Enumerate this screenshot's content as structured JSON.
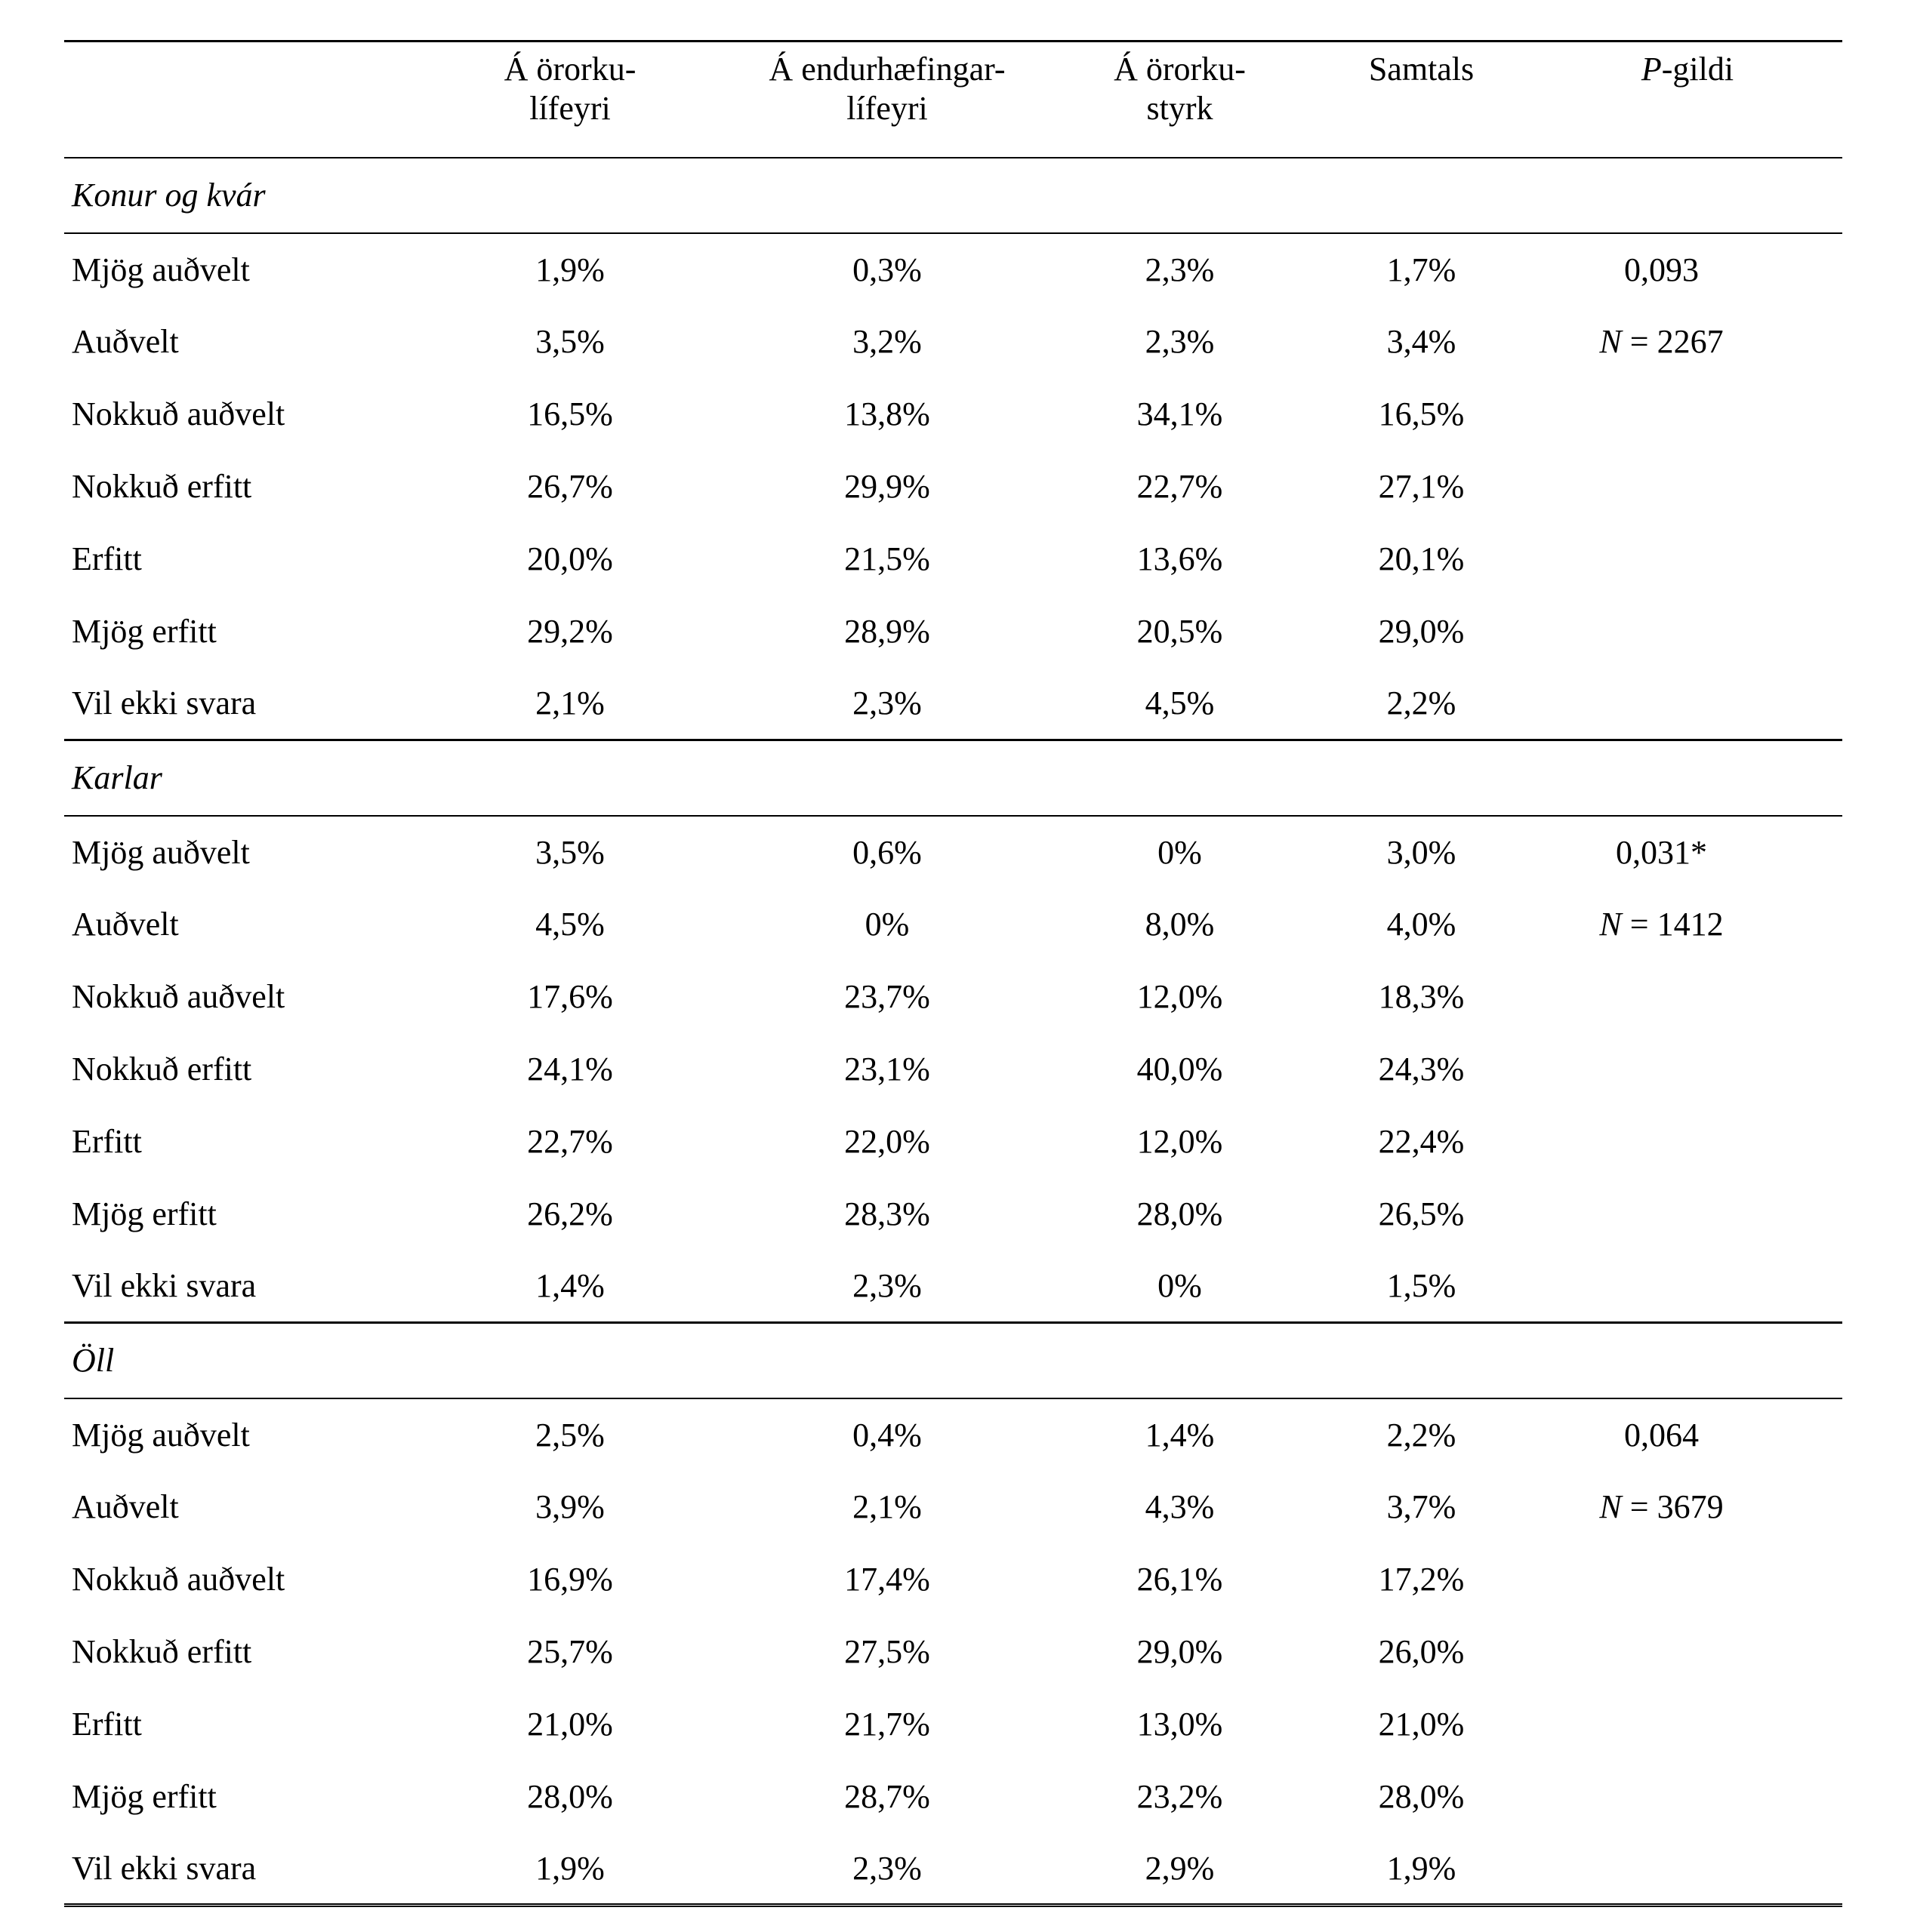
{
  "table": {
    "headers": {
      "label": "",
      "col1_line1": "Á örorku-",
      "col1_line2": "lífeyri",
      "col2_line1": "Á endurhæfingar-",
      "col2_line2": "lífeyri",
      "col3_line1": "Á örorku-",
      "col3_line2": "styrk",
      "col4": "Samtals",
      "col5_italic": "P",
      "col5_rest": "-gildi"
    },
    "sections": [
      {
        "title": "Konur og kvár",
        "p_value": "0,093",
        "n_italic": "N",
        "n_rest": " = 2267",
        "rows": [
          {
            "label": "Mjög auðvelt",
            "values": [
              "1,9%",
              "0,3%",
              "2,3%",
              "1,7%"
            ]
          },
          {
            "label": "Auðvelt",
            "values": [
              "3,5%",
              "3,2%",
              "2,3%",
              "3,4%"
            ]
          },
          {
            "label": "Nokkuð auðvelt",
            "values": [
              "16,5%",
              "13,8%",
              "34,1%",
              "16,5%"
            ]
          },
          {
            "label": "Nokkuð erfitt",
            "values": [
              "26,7%",
              "29,9%",
              "22,7%",
              "27,1%"
            ]
          },
          {
            "label": "Erfitt",
            "values": [
              "20,0%",
              "21,5%",
              "13,6%",
              "20,1%"
            ]
          },
          {
            "label": "Mjög erfitt",
            "values": [
              "29,2%",
              "28,9%",
              "20,5%",
              "29,0%"
            ]
          },
          {
            "label": "Vil ekki svara",
            "values": [
              "2,1%",
              "2,3%",
              "4,5%",
              "2,2%"
            ]
          }
        ]
      },
      {
        "title": "Karlar",
        "p_value": "0,031*",
        "n_italic": "N",
        "n_rest": " = 1412",
        "rows": [
          {
            "label": "Mjög auðvelt",
            "values": [
              "3,5%",
              "0,6%",
              "0%",
              "3,0%"
            ]
          },
          {
            "label": "Auðvelt",
            "values": [
              "4,5%",
              "0%",
              "8,0%",
              "4,0%"
            ]
          },
          {
            "label": "Nokkuð auðvelt",
            "values": [
              "17,6%",
              "23,7%",
              "12,0%",
              "18,3%"
            ]
          },
          {
            "label": "Nokkuð erfitt",
            "values": [
              "24,1%",
              "23,1%",
              "40,0%",
              "24,3%"
            ]
          },
          {
            "label": "Erfitt",
            "values": [
              "22,7%",
              "22,0%",
              "12,0%",
              "22,4%"
            ]
          },
          {
            "label": "Mjög erfitt",
            "values": [
              "26,2%",
              "28,3%",
              "28,0%",
              "26,5%"
            ]
          },
          {
            "label": "Vil ekki svara",
            "values": [
              "1,4%",
              "2,3%",
              "0%",
              "1,5%"
            ]
          }
        ]
      },
      {
        "title": "Öll",
        "p_value": "0,064",
        "n_italic": "N",
        "n_rest": " = 3679",
        "rows": [
          {
            "label": "Mjög auðvelt",
            "values": [
              "2,5%",
              "0,4%",
              "1,4%",
              "2,2%"
            ]
          },
          {
            "label": "Auðvelt",
            "values": [
              "3,9%",
              "2,1%",
              "4,3%",
              "3,7%"
            ]
          },
          {
            "label": "Nokkuð auðvelt",
            "values": [
              "16,9%",
              "17,4%",
              "26,1%",
              "17,2%"
            ]
          },
          {
            "label": "Nokkuð erfitt",
            "values": [
              "25,7%",
              "27,5%",
              "29,0%",
              "26,0%"
            ]
          },
          {
            "label": "Erfitt",
            "values": [
              "21,0%",
              "21,7%",
              "13,0%",
              "21,0%"
            ]
          },
          {
            "label": "Mjög erfitt",
            "values": [
              "28,0%",
              "28,7%",
              "23,2%",
              "28,0%"
            ]
          },
          {
            "label": "Vil ekki svara",
            "values": [
              "1,9%",
              "2,3%",
              "2,9%",
              "1,9%"
            ]
          }
        ]
      }
    ]
  }
}
